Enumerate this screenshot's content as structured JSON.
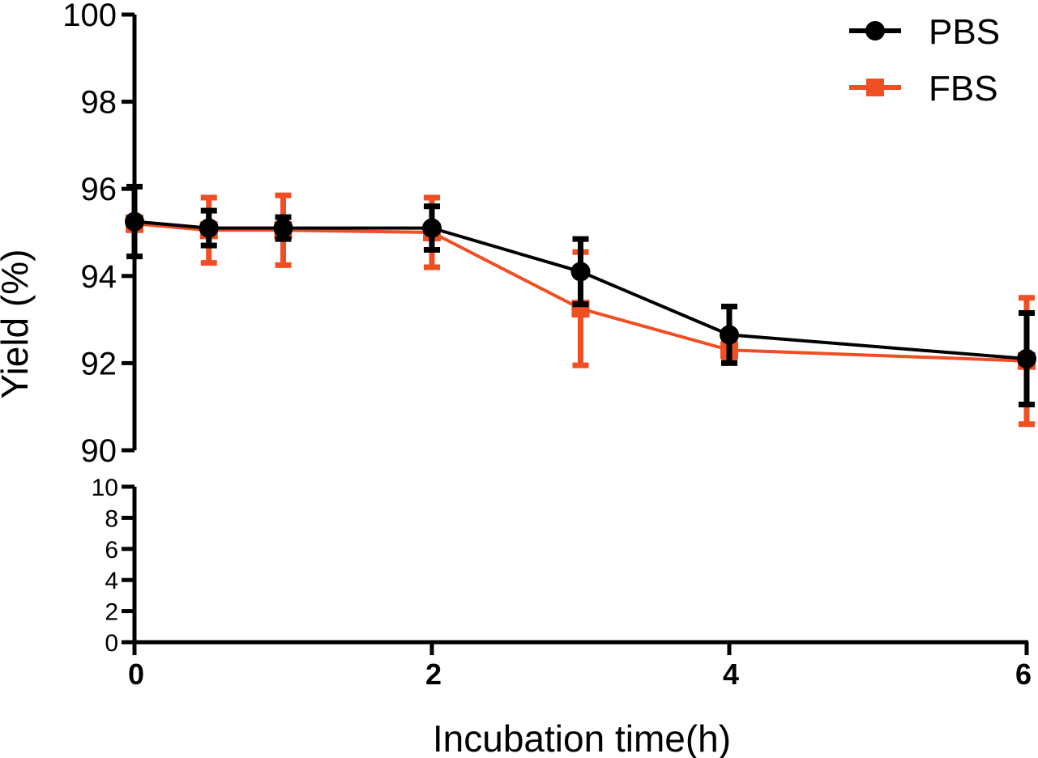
{
  "chart_data": {
    "type": "line",
    "title": "",
    "xlabel": "Incubation time(h)",
    "ylabel": "Yield (%)",
    "x_ticks": [
      0,
      2,
      4,
      6
    ],
    "xlim": [
      0,
      6
    ],
    "y_upper_segment": {
      "ylim": [
        90,
        100
      ],
      "ticks": [
        90,
        92,
        94,
        96,
        98,
        100
      ]
    },
    "y_lower_segment": {
      "ylim": [
        0,
        10
      ],
      "ticks": [
        0,
        2,
        4,
        6,
        8,
        10
      ]
    },
    "grid": false,
    "legend_position": "top-right",
    "series": [
      {
        "name": "PBS",
        "color": "#000000",
        "marker": "circle",
        "x": [
          0,
          0.5,
          1,
          2,
          3,
          4,
          6
        ],
        "values": [
          95.25,
          95.1,
          95.1,
          95.1,
          94.1,
          92.65,
          92.1
        ],
        "error": [
          0.8,
          0.4,
          0.25,
          0.5,
          0.75,
          0.65,
          1.05
        ]
      },
      {
        "name": "FBS",
        "color": "#f04e23",
        "marker": "square",
        "x": [
          0,
          0.5,
          1,
          2,
          3,
          4,
          6
        ],
        "values": [
          95.2,
          95.05,
          95.05,
          95.0,
          93.25,
          92.3,
          92.05
        ],
        "error": [
          0.15,
          0.75,
          0.8,
          0.8,
          1.3,
          0.2,
          1.45
        ]
      }
    ]
  }
}
